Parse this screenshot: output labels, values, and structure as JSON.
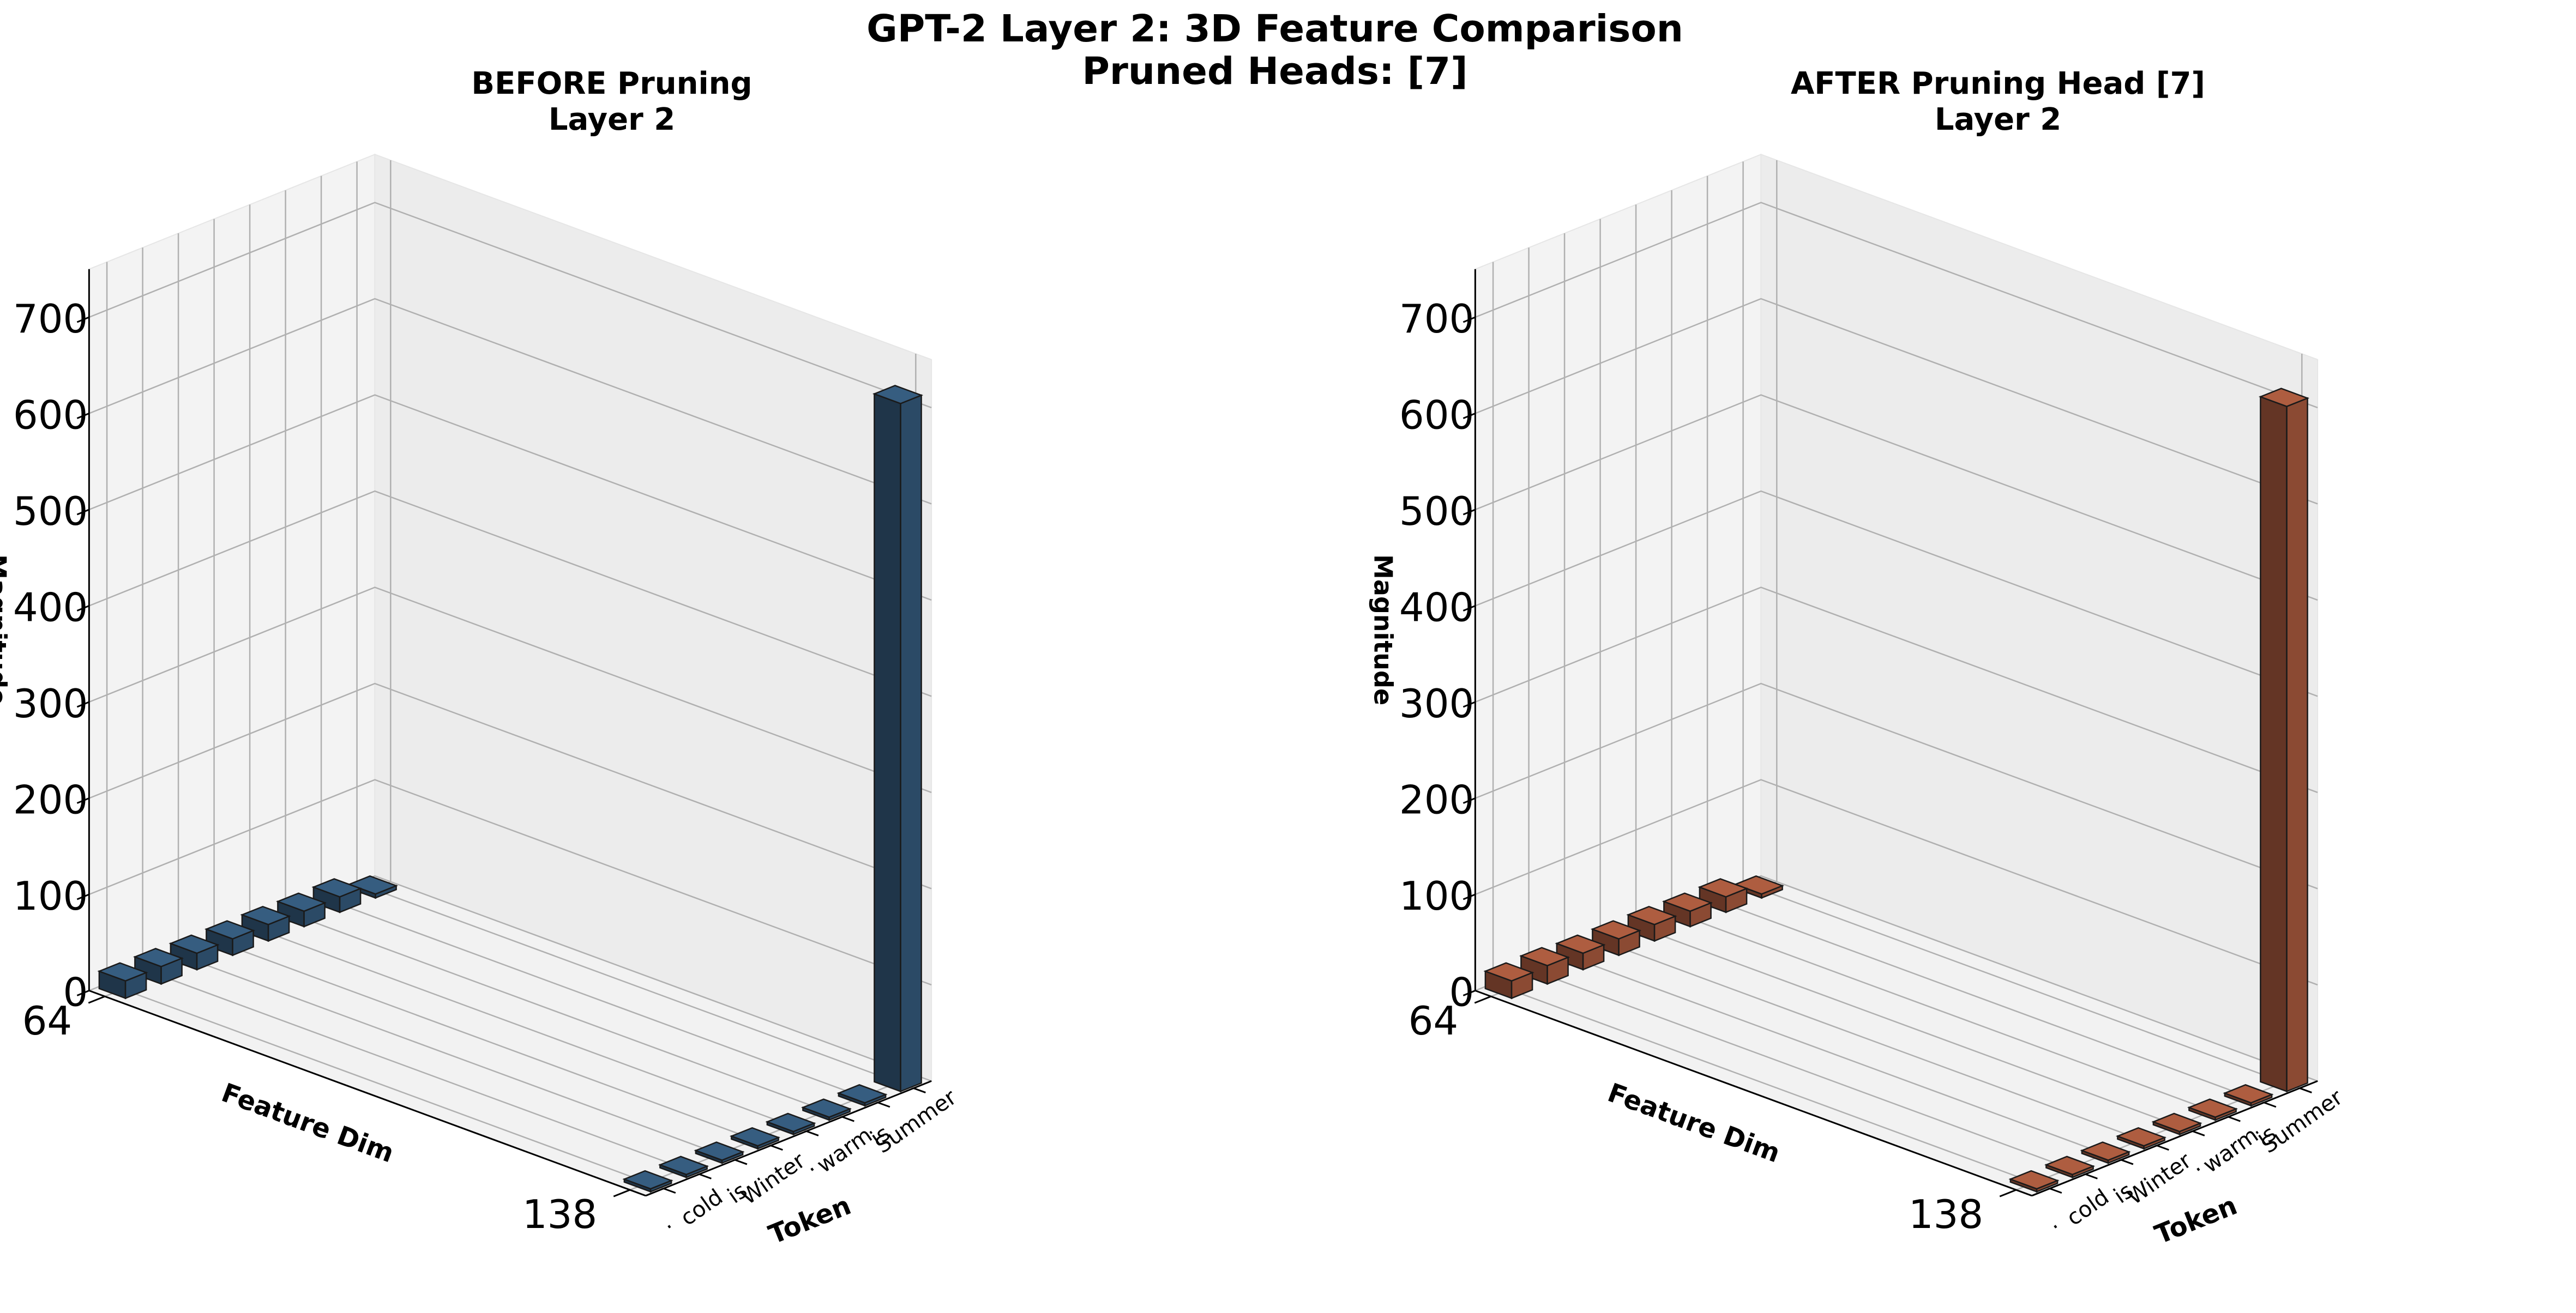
{
  "figure": {
    "title_line1": "GPT-2 Layer 2: 3D Feature Comparison",
    "title_line2": "Pruned Heads: [7]"
  },
  "chart_data": [
    {
      "type": "bar3d",
      "title": "BEFORE Pruning",
      "subtitle": "Layer 2",
      "color": "#2b4a66",
      "xlabel": "Token",
      "ylabel": "Feature Dim",
      "zlabel": "Magnitude",
      "token_ticks": [
        ".",
        "cold",
        "is",
        "Winter",
        ".",
        "warm",
        "is",
        "Summer"
      ],
      "feature_ticks": [
        64,
        138
      ],
      "zticks": [
        0,
        100,
        200,
        300,
        400,
        500,
        600,
        700
      ],
      "zlim": [
        0,
        750
      ],
      "grid": true,
      "bars": [
        {
          "feature": 64,
          "token_index": 0,
          "value": 18
        },
        {
          "feature": 64,
          "token_index": 1,
          "value": 18
        },
        {
          "feature": 64,
          "token_index": 2,
          "value": 17
        },
        {
          "feature": 64,
          "token_index": 3,
          "value": 17
        },
        {
          "feature": 64,
          "token_index": 4,
          "value": 17
        },
        {
          "feature": 64,
          "token_index": 5,
          "value": 16
        },
        {
          "feature": 64,
          "token_index": 6,
          "value": 16
        },
        {
          "feature": 64,
          "token_index": 7,
          "value": 4
        },
        {
          "feature": 138,
          "token_index": 0,
          "value": 3
        },
        {
          "feature": 138,
          "token_index": 1,
          "value": 3
        },
        {
          "feature": 138,
          "token_index": 2,
          "value": 3
        },
        {
          "feature": 138,
          "token_index": 3,
          "value": 3
        },
        {
          "feature": 138,
          "token_index": 4,
          "value": 3
        },
        {
          "feature": 138,
          "token_index": 5,
          "value": 3
        },
        {
          "feature": 138,
          "token_index": 6,
          "value": 3
        },
        {
          "feature": 138,
          "token_index": 7,
          "value": 715
        }
      ]
    },
    {
      "type": "bar3d",
      "title": "AFTER Pruning Head [7]",
      "subtitle": "Layer 2",
      "color": "#8b4a33",
      "xlabel": "Token",
      "ylabel": "Feature Dim",
      "zlabel": "Magnitude",
      "token_ticks": [
        ".",
        "cold",
        "is",
        "Winter",
        ".",
        "warm",
        "is",
        "Summer"
      ],
      "feature_ticks": [
        64,
        138
      ],
      "zticks": [
        0,
        100,
        200,
        300,
        400,
        500,
        600,
        700
      ],
      "zlim": [
        0,
        750
      ],
      "grid": true,
      "bars": [
        {
          "feature": 64,
          "token_index": 0,
          "value": 18
        },
        {
          "feature": 64,
          "token_index": 1,
          "value": 19
        },
        {
          "feature": 64,
          "token_index": 2,
          "value": 17
        },
        {
          "feature": 64,
          "token_index": 3,
          "value": 17
        },
        {
          "feature": 64,
          "token_index": 4,
          "value": 17
        },
        {
          "feature": 64,
          "token_index": 5,
          "value": 16
        },
        {
          "feature": 64,
          "token_index": 6,
          "value": 16
        },
        {
          "feature": 64,
          "token_index": 7,
          "value": 4
        },
        {
          "feature": 138,
          "token_index": 0,
          "value": 3
        },
        {
          "feature": 138,
          "token_index": 1,
          "value": 3
        },
        {
          "feature": 138,
          "token_index": 2,
          "value": 3
        },
        {
          "feature": 138,
          "token_index": 3,
          "value": 3
        },
        {
          "feature": 138,
          "token_index": 4,
          "value": 3
        },
        {
          "feature": 138,
          "token_index": 5,
          "value": 3
        },
        {
          "feature": 138,
          "token_index": 6,
          "value": 3
        },
        {
          "feature": 138,
          "token_index": 7,
          "value": 712
        }
      ]
    }
  ]
}
